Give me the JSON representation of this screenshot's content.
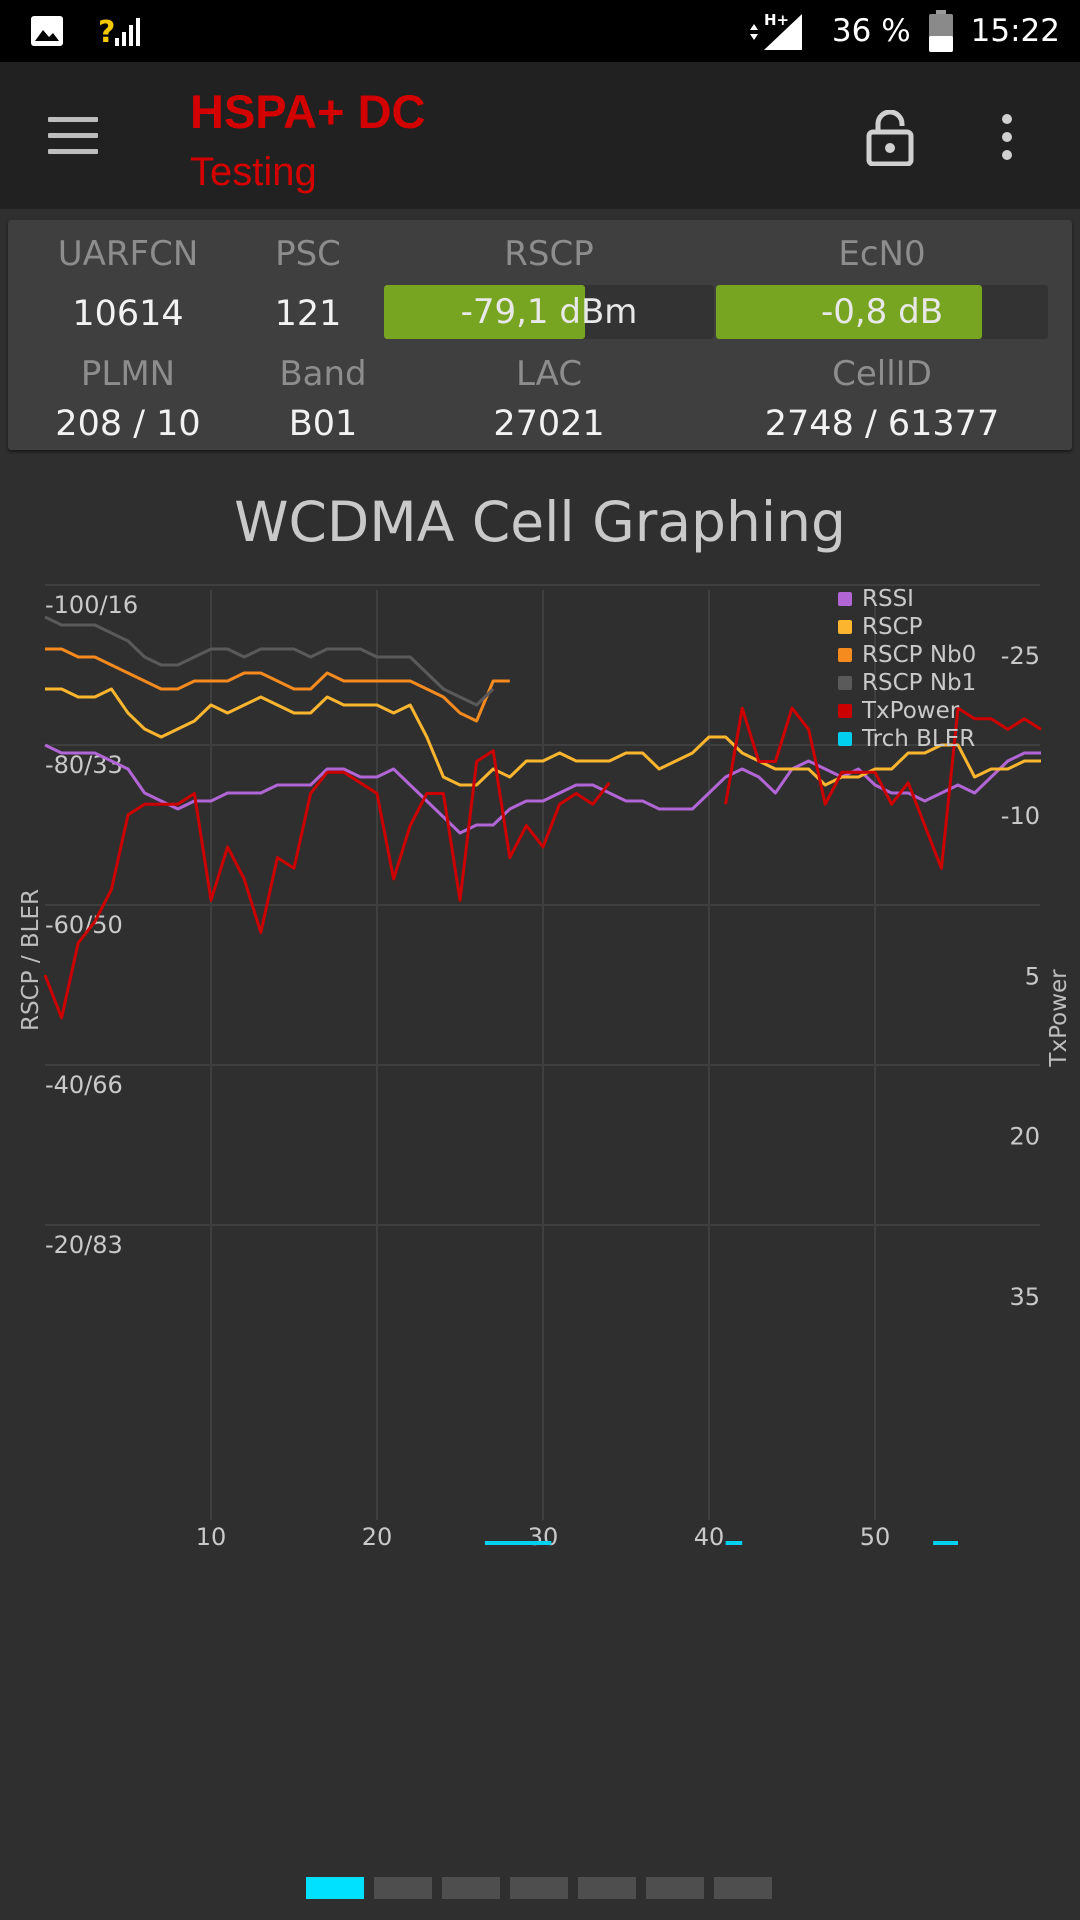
{
  "status_bar": {
    "network": "H+",
    "battery": "36 %",
    "time": "15:22",
    "signal_hint": "?"
  },
  "toolbar": {
    "title": "HSPA+ DC",
    "subtitle": "Testing",
    "title_color": "#d40000"
  },
  "cell_info": {
    "labels": {
      "uarfcn": "UARFCN",
      "psc": "PSC",
      "rscp": "RSCP",
      "ecn0": "EcN0",
      "plmn": "PLMN",
      "band": "Band",
      "lac": "LAC",
      "cellid": "CellID"
    },
    "uarfcn": "10614",
    "psc": "121",
    "rscp": {
      "text": "-79,1 dBm",
      "fill_fraction": 0.61
    },
    "ecn0": {
      "text": "-0,8 dB",
      "fill_fraction": 0.8
    },
    "plmn": "208 / 10",
    "band": "B01",
    "lac": "27021",
    "cellid": "2748 / 61377",
    "bar_color": "#78a521"
  },
  "chart_data": {
    "type": "line",
    "title": "WCDMA Cell Graphing",
    "left_axis_label": "RSCP / BLER",
    "right_axis_label": "TxPower",
    "left_ticks": [
      "-20/83",
      "-40/66",
      "-60/50",
      "-80/33",
      "-100/16"
    ],
    "left_tick_values_rscp": [
      -20,
      -40,
      -60,
      -80,
      -100
    ],
    "right_ticks": [
      "-25",
      "-10",
      "5",
      "20",
      "35"
    ],
    "right_tick_values": [
      -25,
      -10,
      5,
      20,
      35
    ],
    "x_ticks": [
      "10",
      "20",
      "30",
      "40",
      "50"
    ],
    "x_tick_values": [
      10,
      20,
      30,
      40,
      50
    ],
    "xlim": [
      0,
      60
    ],
    "grid": true,
    "legend_position": "top-right",
    "series": [
      {
        "name": "RSSI",
        "color": "#b266d6",
        "axis": "left",
        "x": [
          0,
          1,
          2,
          3,
          4,
          5,
          6,
          7,
          8,
          9,
          10,
          11,
          12,
          13,
          14,
          15,
          16,
          17,
          18,
          19,
          20,
          21,
          22,
          23,
          24,
          25,
          26,
          27,
          28,
          29,
          30,
          31,
          32,
          33,
          34,
          35,
          36,
          37,
          38,
          39,
          40,
          41,
          42,
          43,
          44,
          45,
          46,
          47,
          48,
          49,
          50,
          51,
          52,
          53,
          54,
          55,
          56,
          57,
          58,
          59,
          60
        ],
        "y": [
          -80,
          -79,
          -79,
          -79,
          -78,
          -77,
          -74,
          -73,
          -72,
          -73,
          -73,
          -74,
          -74,
          -74,
          -75,
          -75,
          -75,
          -77,
          -77,
          -76,
          -76,
          -77,
          -75,
          -73,
          -71,
          -69,
          -70,
          -70,
          -72,
          -73,
          -73,
          -74,
          -75,
          -75,
          -74,
          -73,
          -73,
          -72,
          -72,
          -72,
          -74,
          -76,
          -77,
          -76,
          -74,
          -77,
          -78,
          -77,
          -76,
          -77,
          -75,
          -74,
          -74,
          -73,
          -74,
          -75,
          -74,
          -76,
          -78,
          -79,
          -79
        ]
      },
      {
        "name": "RSCP",
        "color": "#fbb52f",
        "axis": "left",
        "x": [
          0,
          1,
          2,
          3,
          4,
          5,
          6,
          7,
          8,
          9,
          10,
          11,
          12,
          13,
          14,
          15,
          16,
          17,
          18,
          19,
          20,
          21,
          22,
          23,
          24,
          25,
          26,
          27,
          28,
          29,
          30,
          31,
          32,
          33,
          34,
          35,
          36,
          37,
          38,
          39,
          40,
          41,
          42,
          43,
          44,
          45,
          46,
          47,
          48,
          49,
          50,
          51,
          52,
          53,
          54,
          55,
          56,
          57,
          58,
          59,
          60
        ],
        "y": [
          -87,
          -87,
          -86,
          -86,
          -87,
          -84,
          -82,
          -81,
          -82,
          -83,
          -85,
          -84,
          -85,
          -86,
          -85,
          -84,
          -84,
          -86,
          -85,
          -85,
          -85,
          -84,
          -85,
          -81,
          -76,
          -75,
          -75,
          -77,
          -76,
          -78,
          -78,
          -79,
          -78,
          -78,
          -78,
          -79,
          -79,
          -77,
          -78,
          -79,
          -81,
          -81,
          -79,
          -78,
          -77,
          -77,
          -77,
          -75,
          -76,
          -76,
          -77,
          -77,
          -79,
          -79,
          -80,
          -80,
          -76,
          -77,
          -77,
          -78,
          -78
        ]
      },
      {
        "name": "RSCP Nb0",
        "color": "#f58a1f",
        "axis": "left",
        "x": [
          0,
          1,
          2,
          3,
          4,
          5,
          6,
          7,
          8,
          9,
          10,
          11,
          12,
          13,
          14,
          15,
          16,
          17,
          18,
          19,
          20,
          21,
          22,
          23,
          24,
          25,
          26,
          27,
          28
        ],
        "y": [
          -92,
          -92,
          -91,
          -91,
          -90,
          -89,
          -88,
          -87,
          -87,
          -88,
          -88,
          -88,
          -89,
          -89,
          -88,
          -87,
          -87,
          -89,
          -88,
          -88,
          -88,
          -88,
          -88,
          -87,
          -86,
          -84,
          -83,
          -88,
          -88
        ]
      },
      {
        "name": "RSCP Nb1",
        "color": "#5a5a5a",
        "axis": "left",
        "x": [
          0,
          1,
          2,
          3,
          4,
          5,
          6,
          7,
          8,
          9,
          10,
          11,
          12,
          13,
          14,
          15,
          16,
          17,
          18,
          19,
          20,
          21,
          22,
          23,
          24,
          25,
          26,
          27
        ],
        "y": [
          -96,
          -95,
          -95,
          -95,
          -94,
          -93,
          -91,
          -90,
          -90,
          -91,
          -92,
          -92,
          -91,
          -92,
          -92,
          -92,
          -91,
          -92,
          -92,
          -92,
          -91,
          -91,
          -91,
          -89,
          -87,
          -86,
          -85,
          -87
        ]
      },
      {
        "name": "TxPower",
        "color": "#cc0000",
        "axis": "right",
        "x": [
          0,
          1,
          2,
          3,
          4,
          5,
          6,
          7,
          8,
          9,
          10,
          11,
          12,
          13,
          14,
          15,
          16,
          17,
          18,
          19,
          20,
          21,
          22,
          23,
          24,
          25,
          26,
          27,
          28,
          29,
          30,
          31,
          32,
          33,
          34,
          41,
          42,
          43,
          44,
          45,
          46,
          47,
          48,
          49,
          50,
          51,
          52,
          53,
          54,
          55,
          56,
          57,
          58,
          59,
          60
        ],
        "y": [
          6,
          10,
          3,
          1,
          -2,
          -9,
          -10,
          -10,
          -10,
          -11,
          -1,
          -6,
          -3,
          2,
          -5,
          -4,
          -11,
          -13,
          -13,
          -12,
          -11,
          -3,
          -8,
          -11,
          -11,
          -1,
          -14,
          -15,
          -5,
          -8,
          -6,
          -10,
          -11,
          -10,
          -12,
          -10,
          -19,
          -14,
          -14,
          -19,
          -17,
          -10,
          -13,
          -13,
          -13,
          -10,
          -12,
          -8,
          -4,
          -19,
          -18,
          -18,
          -17,
          -18,
          -17
        ]
      },
      {
        "name": "Trch BLER",
        "color": "#00d0f0",
        "axis": "left",
        "segments": [
          [
            26.5,
            30.5
          ],
          [
            41,
            42
          ],
          [
            53.5,
            55
          ]
        ],
        "value_percent": 0
      }
    ]
  },
  "pager": {
    "count": 7,
    "active_index": 0,
    "active_color": "#00e0ff"
  }
}
